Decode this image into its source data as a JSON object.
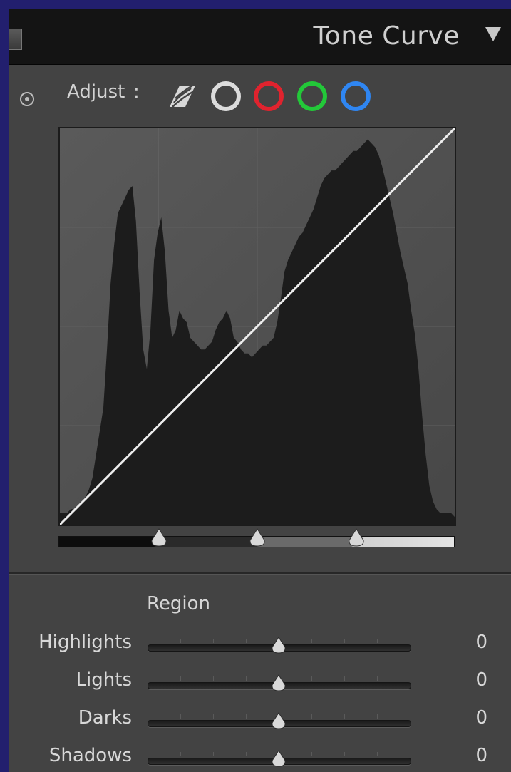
{
  "panel": {
    "title": "Tone Curve",
    "adjust_label": "Adjust",
    "adjust_colon": ":",
    "channels": [
      {
        "name": "parametric",
        "color": "#d8d8d8"
      },
      {
        "name": "rgb",
        "color": "#dcdcdc"
      },
      {
        "name": "red",
        "color": "#e0232e"
      },
      {
        "name": "green",
        "color": "#23c839"
      },
      {
        "name": "blue",
        "color": "#2f86f2"
      }
    ]
  },
  "curve": {
    "type": "linear",
    "points": [
      [
        0,
        0
      ],
      [
        255,
        255
      ]
    ],
    "histogram": [
      0.03,
      0.03,
      0.03,
      0.04,
      0.04,
      0.05,
      0.06,
      0.07,
      0.09,
      0.12,
      0.18,
      0.24,
      0.3,
      0.45,
      0.62,
      0.72,
      0.8,
      0.82,
      0.84,
      0.86,
      0.87,
      0.78,
      0.6,
      0.45,
      0.4,
      0.5,
      0.68,
      0.75,
      0.79,
      0.7,
      0.55,
      0.48,
      0.5,
      0.55,
      0.53,
      0.52,
      0.48,
      0.47,
      0.46,
      0.45,
      0.45,
      0.46,
      0.47,
      0.5,
      0.52,
      0.53,
      0.55,
      0.53,
      0.48,
      0.47,
      0.45,
      0.44,
      0.44,
      0.43,
      0.44,
      0.45,
      0.46,
      0.46,
      0.47,
      0.48,
      0.52,
      0.58,
      0.65,
      0.68,
      0.7,
      0.72,
      0.74,
      0.75,
      0.77,
      0.79,
      0.81,
      0.84,
      0.87,
      0.89,
      0.9,
      0.91,
      0.91,
      0.92,
      0.93,
      0.94,
      0.95,
      0.96,
      0.96,
      0.97,
      0.98,
      0.99,
      0.98,
      0.97,
      0.95,
      0.92,
      0.88,
      0.84,
      0.8,
      0.75,
      0.7,
      0.66,
      0.62,
      0.55,
      0.49,
      0.4,
      0.28,
      0.18,
      0.1,
      0.06,
      0.04,
      0.03,
      0.03,
      0.03,
      0.03,
      0.02
    ],
    "split_points": [
      0.25,
      0.5,
      0.75
    ]
  },
  "region": {
    "heading": "Region",
    "sliders": [
      {
        "label": "Highlights",
        "value": "0",
        "position": 0.5
      },
      {
        "label": "Lights",
        "value": "0",
        "position": 0.5
      },
      {
        "label": "Darks",
        "value": "0",
        "position": 0.5
      },
      {
        "label": "Shadows",
        "value": "0",
        "position": 0.5
      }
    ]
  }
}
